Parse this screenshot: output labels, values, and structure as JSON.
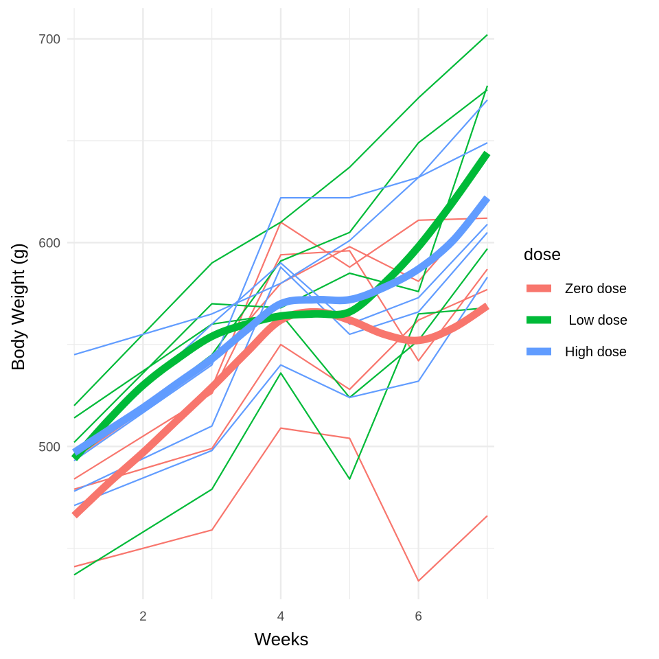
{
  "chart_data": {
    "type": "line",
    "xlabel": "Weeks",
    "ylabel": "Body Weight (g)",
    "xlim": [
      0.9,
      7.1
    ],
    "ylim": [
      425,
      715
    ],
    "x_ticks": [
      2,
      4,
      6
    ],
    "x_tick_labels": [
      "2",
      "4",
      "6"
    ],
    "y_ticks": [
      500,
      600,
      700
    ],
    "y_tick_labels": [
      "500",
      "600",
      "700"
    ],
    "grid": true,
    "legend": {
      "title": "dose",
      "position": "right",
      "entries": [
        {
          "label": "Zero dose",
          "color": "#F8766D"
        },
        {
          "label": " Low dose",
          "color": "#00BA38"
        },
        {
          "label": "High dose",
          "color": "#619CFF"
        }
      ]
    },
    "x": [
      1,
      3,
      4,
      5,
      6,
      7
    ],
    "individual_series": [
      {
        "group": "Zero dose",
        "values": [
          441,
          459,
          509,
          504,
          434,
          466
        ]
      },
      {
        "group": "Zero dose",
        "values": [
          484,
          526,
          594,
          596,
          542,
          587
        ]
      },
      {
        "group": "Zero dose",
        "values": [
          479,
          499,
          550,
          528,
          562,
          577
        ]
      },
      {
        "group": "Zero dose",
        "values": [
          466,
          529,
          610,
          588,
          611,
          612
        ]
      },
      {
        "group": "Zero dose",
        "values": [
          494,
          541,
          580,
          598,
          581,
          620
        ]
      },
      {
        "group": "Low dose",
        "values": [
          437,
          479,
          536,
          484,
          565,
          568
        ]
      },
      {
        "group": "Low dose",
        "values": [
          514,
          560,
          565,
          524,
          552,
          597
        ]
      },
      {
        "group": "Low dose",
        "values": [
          502,
          570,
          568,
          585,
          576,
          677
        ]
      },
      {
        "group": "Low dose",
        "values": [
          520,
          590,
          610,
          637,
          671,
          702
        ]
      },
      {
        "group": "Low dose",
        "values": [
          494,
          545,
          591,
          605,
          649,
          675
        ]
      },
      {
        "group": "High dose",
        "values": [
          545,
          565,
          580,
          601,
          632,
          649
        ]
      },
      {
        "group": "High dose",
        "values": [
          478,
          510,
          588,
          555,
          566,
          605
        ]
      },
      {
        "group": "High dose",
        "values": [
          471,
          498,
          540,
          524,
          532,
          583
        ]
      },
      {
        "group": "High dose",
        "values": [
          493,
          540,
          622,
          622,
          632,
          670
        ]
      },
      {
        "group": "High dose",
        "values": [
          497,
          560,
          590,
          560,
          573,
          609
        ]
      }
    ],
    "smooth_series": [
      {
        "name": "Zero dose",
        "x": [
          1,
          1.5,
          2,
          2.5,
          3,
          3.5,
          4,
          4.5,
          5,
          5.5,
          6,
          6.5,
          7
        ],
        "values": [
          466,
          482,
          497,
          513,
          529,
          546,
          562,
          566,
          562,
          555,
          552,
          558,
          569
        ]
      },
      {
        "name": " Low dose",
        "x": [
          1,
          1.5,
          2,
          2.5,
          3,
          3.5,
          4,
          4.5,
          5,
          5.5,
          6,
          6.5,
          7
        ],
        "values": [
          494,
          513,
          530,
          543,
          554,
          560,
          564,
          565,
          566,
          580,
          598,
          620,
          644
        ]
      },
      {
        "name": "High dose",
        "x": [
          1,
          1.5,
          2,
          2.5,
          3,
          3.5,
          4,
          4.5,
          5,
          5.5,
          6,
          6.5,
          7
        ],
        "values": [
          497,
          508,
          519,
          531,
          543,
          557,
          570,
          572,
          572,
          578,
          587,
          601,
          622
        ]
      }
    ]
  }
}
